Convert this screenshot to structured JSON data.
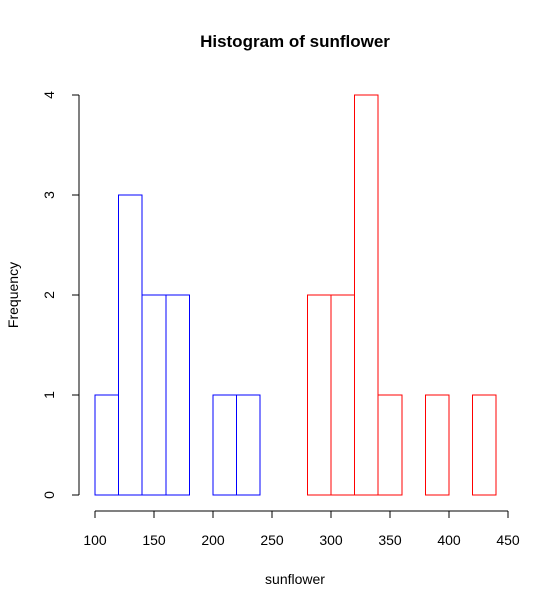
{
  "chart_data": {
    "type": "bar",
    "title": "Histogram of sunflower",
    "xlabel": "sunflower",
    "ylabel": "Frequency",
    "xlim": [
      100,
      450
    ],
    "ylim": [
      0,
      4
    ],
    "x_ticks": [
      100,
      150,
      200,
      250,
      300,
      350,
      400,
      450
    ],
    "y_ticks": [
      0,
      1,
      2,
      3,
      4
    ],
    "bin_width": 20,
    "grid": false,
    "series": [
      {
        "color": "#0000ff",
        "bins": [
          {
            "start": 100,
            "end": 120,
            "count": 1
          },
          {
            "start": 120,
            "end": 140,
            "count": 3
          },
          {
            "start": 140,
            "end": 160,
            "count": 2
          },
          {
            "start": 160,
            "end": 180,
            "count": 2
          },
          {
            "start": 180,
            "end": 200,
            "count": 0
          },
          {
            "start": 200,
            "end": 220,
            "count": 1
          },
          {
            "start": 220,
            "end": 240,
            "count": 1
          },
          {
            "start": 240,
            "end": 260,
            "count": 0
          },
          {
            "start": 260,
            "end": 280,
            "count": 0
          },
          {
            "start": 280,
            "end": 300,
            "count": 0
          },
          {
            "start": 300,
            "end": 320,
            "count": 0
          },
          {
            "start": 320,
            "end": 340,
            "count": 0
          },
          {
            "start": 340,
            "end": 360,
            "count": 0
          },
          {
            "start": 360,
            "end": 380,
            "count": 0
          },
          {
            "start": 380,
            "end": 400,
            "count": 0
          },
          {
            "start": 400,
            "end": 420,
            "count": 0
          },
          {
            "start": 420,
            "end": 440,
            "count": 0
          }
        ]
      },
      {
        "color": "#ff0000",
        "bins": [
          {
            "start": 100,
            "end": 120,
            "count": 0
          },
          {
            "start": 120,
            "end": 140,
            "count": 0
          },
          {
            "start": 140,
            "end": 160,
            "count": 0
          },
          {
            "start": 160,
            "end": 180,
            "count": 0
          },
          {
            "start": 180,
            "end": 200,
            "count": 0
          },
          {
            "start": 200,
            "end": 220,
            "count": 0
          },
          {
            "start": 220,
            "end": 240,
            "count": 0
          },
          {
            "start": 240,
            "end": 260,
            "count": 0
          },
          {
            "start": 260,
            "end": 280,
            "count": 0
          },
          {
            "start": 280,
            "end": 300,
            "count": 2
          },
          {
            "start": 300,
            "end": 320,
            "count": 2
          },
          {
            "start": 320,
            "end": 340,
            "count": 4
          },
          {
            "start": 340,
            "end": 360,
            "count": 1
          },
          {
            "start": 360,
            "end": 380,
            "count": 0
          },
          {
            "start": 380,
            "end": 400,
            "count": 1
          },
          {
            "start": 400,
            "end": 420,
            "count": 0
          },
          {
            "start": 420,
            "end": 440,
            "count": 1
          }
        ]
      }
    ]
  }
}
